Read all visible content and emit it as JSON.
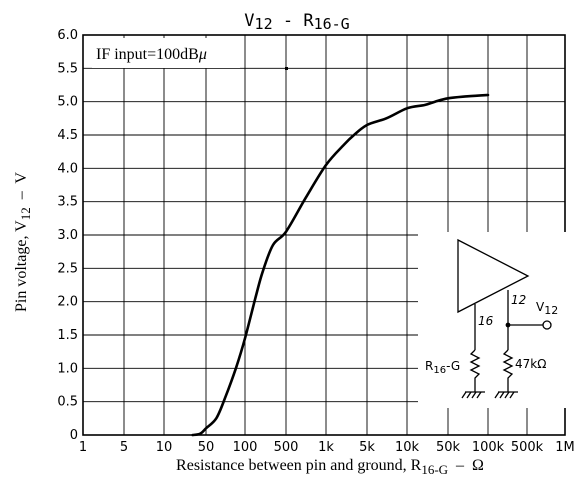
{
  "chart_data": {
    "type": "line",
    "title_parts": {
      "v": "V",
      "v_sub": "12",
      "dash": " - ",
      "r": "R",
      "r_sub": "16-G"
    },
    "xlabel_parts": {
      "text": "Resistance between pin and ground, R",
      "sub": "16-G",
      "unit": "  –  Ω"
    },
    "ylabel_parts": {
      "text": "Pin voltage, V",
      "sub": "12",
      "unit": "  –  V"
    },
    "annotation": {
      "text": "IF input=100dB",
      "unit": "μ"
    },
    "x_scale": "log-like (irregular tick spacing)",
    "x_ticks": [
      "1",
      "5",
      "10",
      "50",
      "100",
      "500",
      "1k",
      "5k",
      "10k",
      "50k",
      "100k",
      "500k",
      "1M"
    ],
    "x_tick_values": [
      1,
      5,
      10,
      50,
      100,
      500,
      1000,
      5000,
      10000,
      50000,
      100000,
      500000,
      1000000
    ],
    "y_ticks": [
      "0",
      "0.5",
      "1.0",
      "1.5",
      "2.0",
      "2.5",
      "3.0",
      "3.5",
      "4.0",
      "4.5",
      "5.0",
      "5.5",
      "6.0"
    ],
    "ylim": [
      0,
      6
    ],
    "grid": true,
    "series": [
      {
        "x": [
          30,
          40,
          50,
          60,
          70,
          85,
          100,
          150,
          200,
          300,
          500,
          700,
          1000,
          2000,
          3000,
          5000,
          7000,
          10000,
          20000,
          30000,
          50000,
          70000,
          100000
        ],
        "y": [
          0,
          0.02,
          0.1,
          0.25,
          0.55,
          1.0,
          1.45,
          2.05,
          2.45,
          2.85,
          3.05,
          3.55,
          4.05,
          4.35,
          4.5,
          4.65,
          4.75,
          4.9,
          4.95,
          5.0,
          5.05,
          5.08,
          5.1
        ]
      }
    ],
    "schematic": {
      "pin16": "16",
      "pin12": "12",
      "out_v": "V",
      "out_sub": "12",
      "r_label": "R",
      "r_sub": "16",
      "r_suffix": "-G",
      "r2_label": "47kΩ"
    }
  }
}
